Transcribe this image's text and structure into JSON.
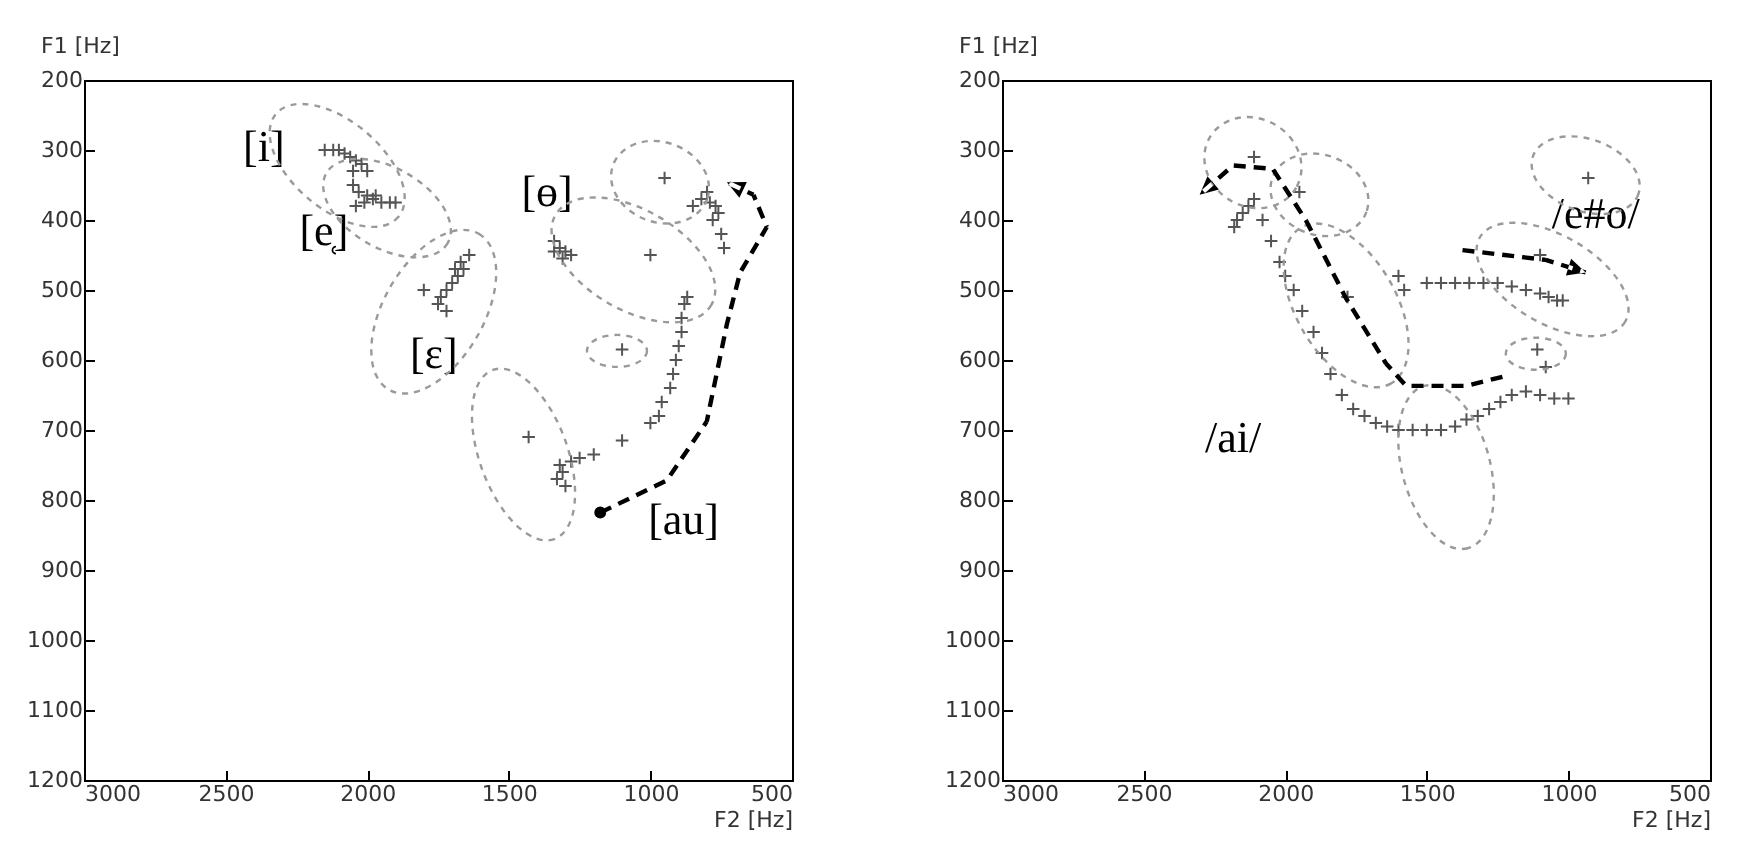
{
  "chart_data": [
    {
      "type": "scatter",
      "xlabel": "F2 [Hz]",
      "ylabel": "F1 [Hz]",
      "xlim": [
        3000,
        500
      ],
      "ylim": [
        1200,
        200
      ],
      "xticks": [
        3000,
        2500,
        2000,
        1500,
        1000,
        500
      ],
      "yticks": [
        200,
        300,
        400,
        500,
        600,
        700,
        800,
        900,
        1000,
        1100,
        1200
      ],
      "marker": "cross",
      "series": [
        {
          "color": "#555555",
          "x": [
            2150,
            2120,
            2100,
            2080,
            2060,
            2040,
            2020,
            2000,
            2050,
            2050,
            2030,
            2000,
            1980,
            1950,
            1920,
            1900,
            2040,
            2010,
            1970,
            1640,
            1660,
            1680,
            1700,
            1720,
            1740,
            1750,
            1800,
            1720,
            1690,
            1670,
            1340,
            1320,
            1300,
            1280,
            1310,
            1340,
            950,
            850,
            820,
            800,
            790,
            770,
            760,
            780,
            750,
            740,
            1000,
            1100,
            1430,
            1330,
            1310,
            1320,
            1300,
            1280,
            1250,
            1200,
            1100,
            1000,
            970,
            960,
            930,
            920,
            910,
            900,
            890,
            890,
            880,
            870
          ],
          "values": [
            300,
            300,
            300,
            305,
            310,
            315,
            320,
            330,
            330,
            350,
            360,
            365,
            370,
            375,
            375,
            375,
            380,
            375,
            365,
            450,
            470,
            480,
            490,
            500,
            510,
            520,
            500,
            530,
            470,
            460,
            430,
            440,
            445,
            450,
            455,
            445,
            340,
            380,
            370,
            360,
            375,
            380,
            390,
            400,
            420,
            440,
            450,
            585,
            710,
            770,
            760,
            750,
            780,
            745,
            740,
            735,
            715,
            690,
            680,
            660,
            640,
            620,
            600,
            580,
            560,
            540,
            520,
            510
          ]
        }
      ],
      "annotations": [
        "[i]",
        "[e̜]",
        "[ɛ]",
        "[ɵ]",
        "[au]"
      ]
    },
    {
      "type": "scatter",
      "xlabel": "F2 [Hz]",
      "ylabel": "F1 [Hz]",
      "xlim": [
        3000,
        500
      ],
      "ylim": [
        1200,
        200
      ],
      "xticks": [
        3000,
        2500,
        2000,
        1500,
        1000,
        500
      ],
      "yticks": [
        200,
        300,
        400,
        500,
        600,
        700,
        800,
        900,
        1000,
        1100,
        1200
      ],
      "marker": "cross",
      "series": [
        {
          "color": "#555555",
          "x": [
            2180,
            2170,
            2150,
            2130,
            2110,
            2080,
            2050,
            2020,
            2000,
            1970,
            1940,
            1900,
            1870,
            1840,
            1800,
            1760,
            1720,
            1680,
            1640,
            1600,
            1550,
            1500,
            1450,
            1400,
            1360,
            1320,
            1280,
            1240,
            1200,
            1150,
            1100,
            1050,
            1000,
            2110,
            1950,
            1780,
            1110,
            1080,
            1600,
            1580,
            1500,
            1450,
            1400,
            1350,
            1300,
            1250,
            1200,
            1150,
            1100,
            1070,
            1040,
            1020,
            1100,
            930
          ],
          "values": [
            410,
            400,
            390,
            380,
            370,
            400,
            430,
            460,
            480,
            500,
            530,
            560,
            590,
            620,
            650,
            670,
            680,
            690,
            695,
            700,
            700,
            700,
            700,
            695,
            685,
            680,
            670,
            660,
            650,
            645,
            650,
            655,
            655,
            310,
            360,
            510,
            585,
            610,
            480,
            500,
            490,
            490,
            490,
            490,
            490,
            490,
            495,
            500,
            505,
            510,
            515,
            515,
            450,
            340
          ]
        }
      ],
      "annotations": [
        "/ai/",
        "/e#o/"
      ]
    }
  ]
}
